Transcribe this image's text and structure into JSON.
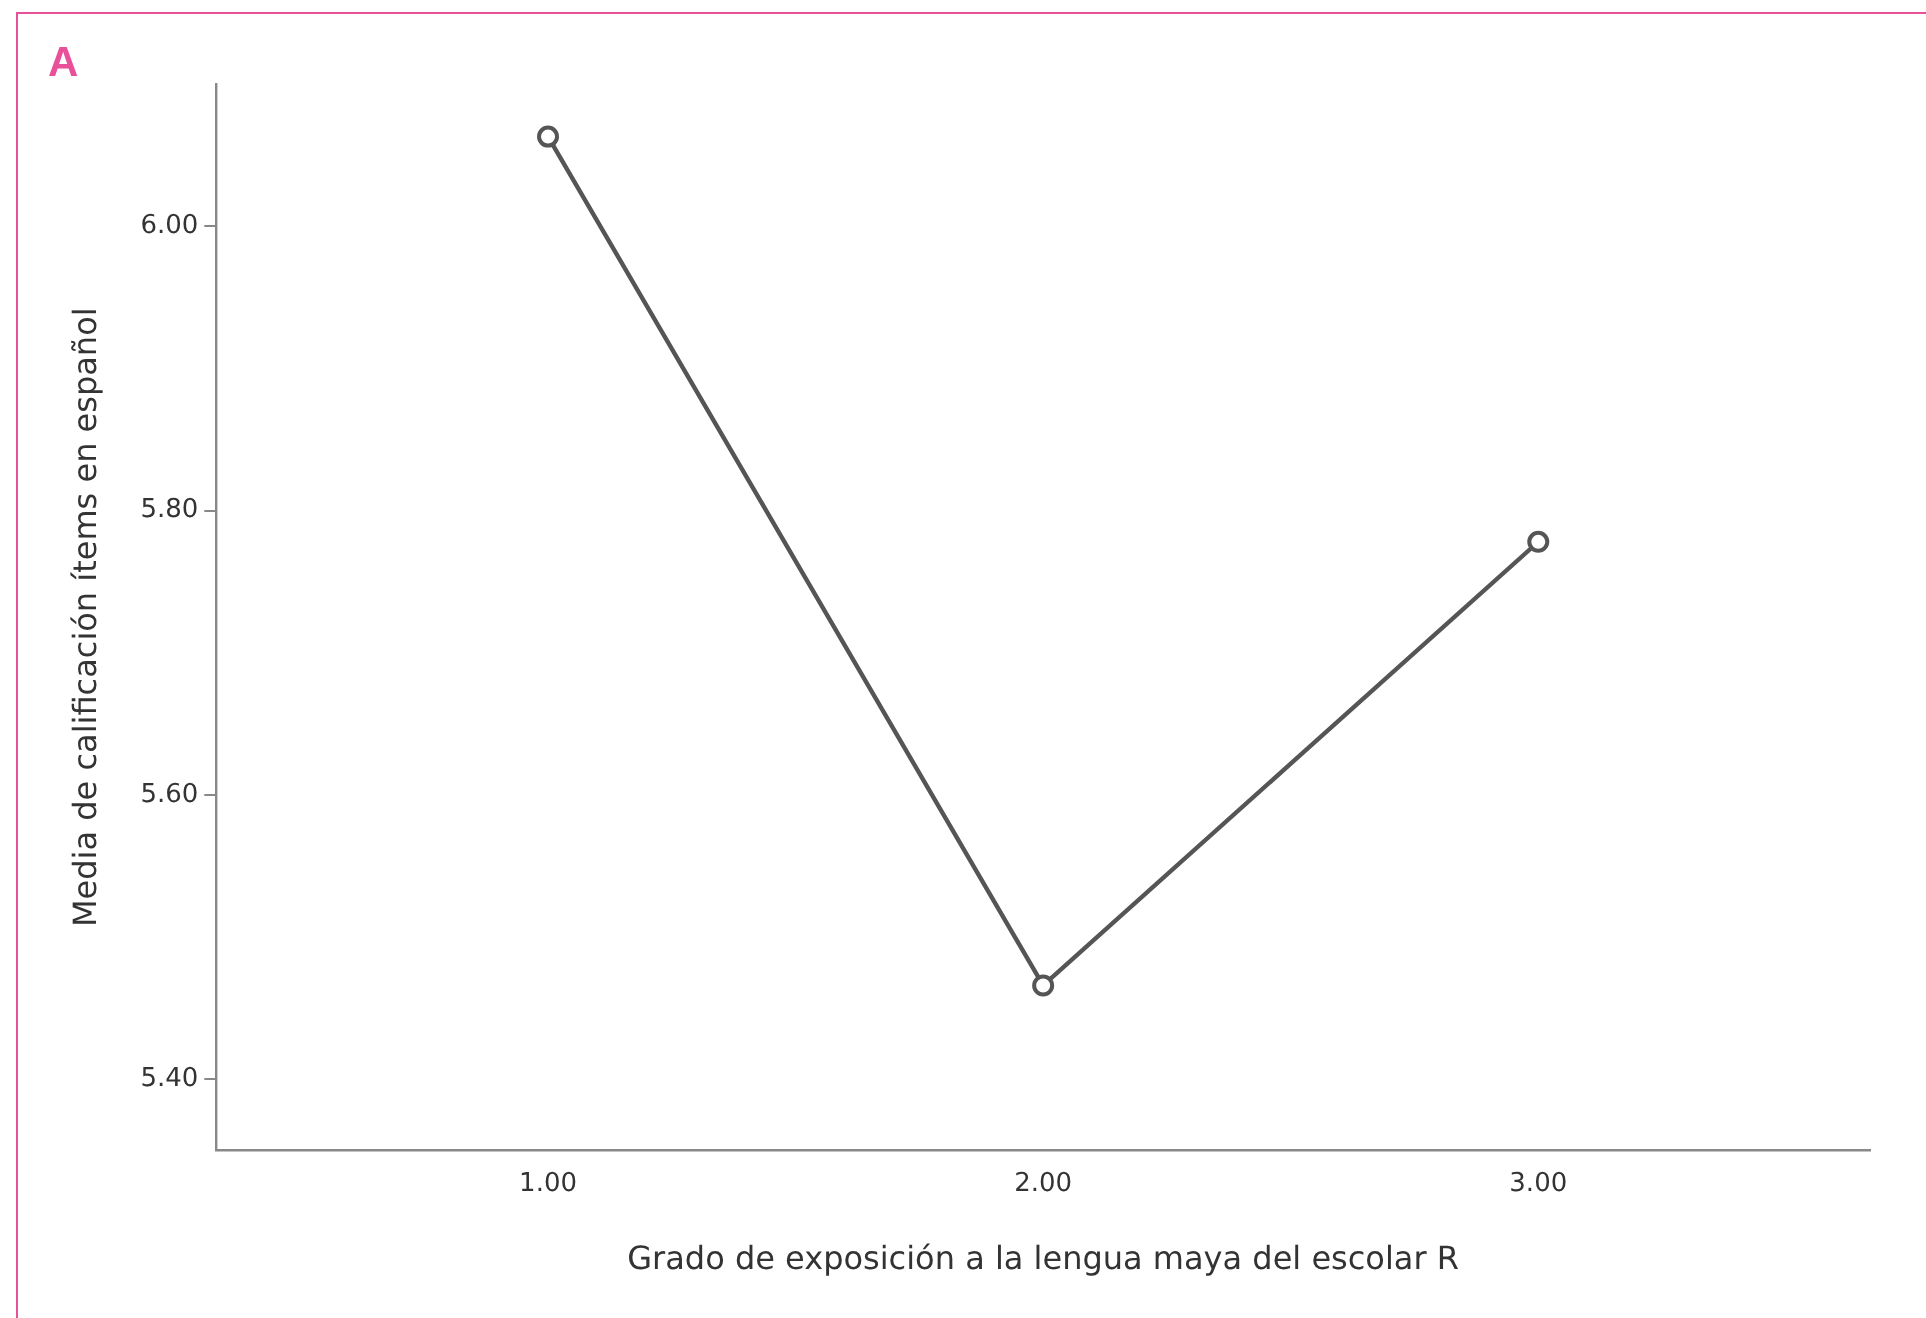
{
  "chart_data": {
    "type": "line",
    "xlabel": "Grado de exposición a la lengua maya del escolar R",
    "ylabel": "Media de calificación ítems en español",
    "annotations": [
      "A"
    ],
    "x": [
      1,
      2,
      3
    ],
    "series": [
      {
        "color": "#555555",
        "values": [
          6.063,
          5.466,
          5.778
        ]
      }
    ],
    "xlim": [
      0.33,
      3.67
    ],
    "xticks": [
      {
        "value": 1,
        "label": "1.00"
      },
      {
        "value": 2,
        "label": "2.00"
      },
      {
        "value": 3,
        "label": "3.00"
      }
    ],
    "ylim": [
      5.35,
      6.1
    ],
    "yticks": [
      {
        "value": 5.4,
        "label": "5.40"
      },
      {
        "value": 5.6,
        "label": "5.60"
      },
      {
        "value": 5.8,
        "label": "5.80"
      },
      {
        "value": 6,
        "label": "6.00"
      }
    ],
    "grid": false,
    "legend": false,
    "marker": "circle",
    "line_style": "solid"
  }
}
